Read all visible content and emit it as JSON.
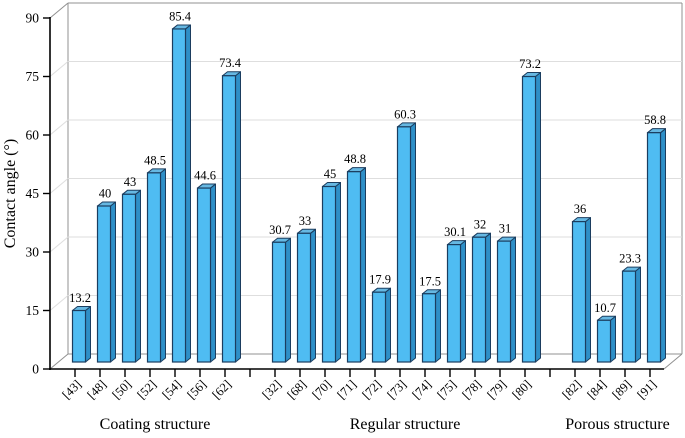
{
  "chart_data": {
    "type": "bar",
    "style": "3d-framed-column-chart",
    "title": "",
    "xlabel": "",
    "ylabel": "Contact angle (°)",
    "ylim": [
      0,
      90
    ],
    "yticks": [
      0,
      15,
      30,
      45,
      60,
      75,
      90
    ],
    "grid": true,
    "legend": false,
    "groups": [
      {
        "label": "Coating structure",
        "categories": [
          "[43]",
          "[48]",
          "[50]",
          "[52]",
          "[54]",
          "[56]",
          "[62]"
        ],
        "values": [
          13.2,
          40,
          43,
          48.5,
          85.4,
          44.6,
          73.4
        ]
      },
      {
        "label": "Regular structure",
        "categories": [
          "[32]",
          "[68]",
          "[70]",
          "[71]",
          "[72]",
          "[73]",
          "[74]",
          "[75]",
          "[78]",
          "[79]",
          "[80]"
        ],
        "values": [
          30.7,
          33,
          45,
          48.8,
          17.9,
          60.3,
          17.5,
          30.1,
          32,
          31,
          73.2
        ]
      },
      {
        "label": "Porous structure",
        "categories": [
          "[82]",
          "[84]",
          "[89]",
          "[91]"
        ],
        "values": [
          36,
          10.7,
          23.3,
          58.8
        ]
      }
    ],
    "colors": {
      "bar_front": "#4FBCF2",
      "bar_top": "#66B8E2",
      "bar_side": "#2E8FC7",
      "bar_border": "#1B3D5F",
      "axis": "#000000",
      "frame": "#909090",
      "grid": "#DEDEDE",
      "text": "#000000",
      "background": "#FFFFFF"
    }
  }
}
